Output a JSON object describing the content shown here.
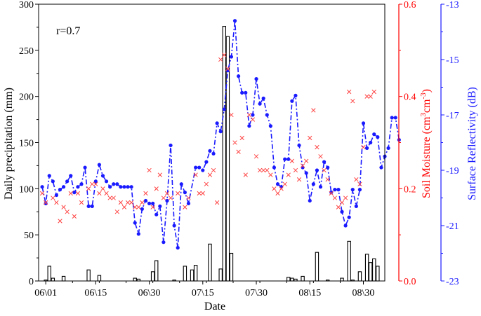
{
  "chart_data": {
    "type": "combo",
    "annotation": "r=0.7",
    "xlabel": "Date",
    "x_ticks": [
      "06\\01",
      "06\\15",
      "06\\30",
      "07\\15",
      "07\\30",
      "08\\15",
      "08\\30"
    ],
    "x_tick_days": [
      1,
      15,
      30,
      45,
      60,
      75,
      90
    ],
    "x_range": [
      -1,
      96
    ],
    "y_left": {
      "label": "Daily precipitation (mm)",
      "range": [
        0,
        300
      ],
      "ticks": [
        "0",
        "50",
        "100",
        "150",
        "200",
        "250",
        "300"
      ],
      "color": "#000000"
    },
    "y_right1": {
      "label_main": "Soil Moisture (cm",
      "label_sup1": "3",
      "label_mid": "cm",
      "label_sup2": "-3",
      "label_end": ")",
      "range": [
        0.0,
        0.6
      ],
      "ticks": [
        "0.0",
        "0.2",
        "0.4",
        "0.6"
      ],
      "color": "#ff0000"
    },
    "y_right2": {
      "label": "Surface Reflectivity (dB)",
      "range": [
        -23,
        -13
      ],
      "ticks": [
        "-23",
        "-21",
        "-19",
        "-17",
        "-15",
        "-13"
      ],
      "color": "#1a1aff"
    },
    "series": [
      {
        "name": "Daily precipitation",
        "axis": "left",
        "kind": "bar",
        "color": "#000000",
        "points": [
          [
            1,
            1
          ],
          [
            2,
            16
          ],
          [
            3,
            3
          ],
          [
            6,
            5
          ],
          [
            13,
            12
          ],
          [
            16,
            6
          ],
          [
            26,
            3
          ],
          [
            27,
            2
          ],
          [
            31,
            10
          ],
          [
            32,
            22
          ],
          [
            37,
            1
          ],
          [
            40,
            16
          ],
          [
            42,
            12
          ],
          [
            43,
            17
          ],
          [
            47,
            40
          ],
          [
            50,
            13
          ],
          [
            51,
            276
          ],
          [
            52,
            265
          ],
          [
            53,
            30
          ],
          [
            69,
            4
          ],
          [
            70,
            3
          ],
          [
            71,
            2
          ],
          [
            73,
            5
          ],
          [
            77,
            31
          ],
          [
            80,
            1
          ],
          [
            84,
            3
          ],
          [
            86,
            43
          ],
          [
            87,
            1
          ],
          [
            89,
            10
          ],
          [
            91,
            29
          ],
          [
            92,
            20
          ],
          [
            93,
            24
          ],
          [
            94,
            16
          ]
        ]
      },
      {
        "name": "Soil Moisture",
        "axis": "right1",
        "kind": "scatter",
        "marker": "x",
        "color": "#ff4444",
        "points": [
          [
            0,
            0.19
          ],
          [
            1,
            0.17
          ],
          [
            3,
            0.18
          ],
          [
            4,
            0.17
          ],
          [
            5,
            0.13
          ],
          [
            6,
            0.16
          ],
          [
            7,
            0.15
          ],
          [
            8,
            0.19
          ],
          [
            9,
            0.14
          ],
          [
            10,
            0.19
          ],
          [
            11,
            0.17
          ],
          [
            13,
            0.2
          ],
          [
            14,
            0.21
          ],
          [
            15,
            0.21
          ],
          [
            16,
            0.19
          ],
          [
            17,
            0.2
          ],
          [
            18,
            0.19
          ],
          [
            19,
            0.18
          ],
          [
            20,
            0.18
          ],
          [
            21,
            0.15
          ],
          [
            22,
            0.17
          ],
          [
            23,
            0.16
          ],
          [
            24,
            0.17
          ],
          [
            25,
            0.17
          ],
          [
            26,
            0.16
          ],
          [
            27,
            0.16
          ],
          [
            28,
            0.17
          ],
          [
            29,
            0.19
          ],
          [
            30,
            0.24
          ],
          [
            31,
            0.16
          ],
          [
            32,
            0.2
          ],
          [
            33,
            0.23
          ],
          [
            34,
            0.18
          ],
          [
            35,
            0.19
          ],
          [
            36,
            0.18
          ],
          [
            38,
            0.19
          ],
          [
            40,
            0.16
          ],
          [
            41,
            0.18
          ],
          [
            43,
            0.23
          ],
          [
            44,
            0.19
          ],
          [
            45,
            0.19
          ],
          [
            46,
            0.21
          ],
          [
            47,
            0.23
          ],
          [
            48,
            0.24
          ],
          [
            49,
            0.17
          ],
          [
            50,
            0.48
          ],
          [
            51,
            0.49
          ],
          [
            52,
            0.46
          ],
          [
            53,
            0.36
          ],
          [
            54,
            0.3
          ],
          [
            55,
            0.28
          ],
          [
            56,
            0.31
          ],
          [
            57,
            0.23
          ],
          [
            58,
            0.36
          ],
          [
            59,
            0.35
          ],
          [
            60,
            0.27
          ],
          [
            61,
            0.24
          ],
          [
            62,
            0.24
          ],
          [
            63,
            0.24
          ],
          [
            64,
            0.23
          ],
          [
            65,
            0.2
          ],
          [
            66,
            0.19
          ],
          [
            67,
            0.2
          ],
          [
            68,
            0.21
          ],
          [
            69,
            0.23
          ],
          [
            70,
            0.26
          ],
          [
            71,
            0.24
          ],
          [
            72,
            0.22
          ],
          [
            73,
            0.25
          ],
          [
            74,
            0.26
          ],
          [
            75,
            0.31
          ],
          [
            76,
            0.37
          ],
          [
            77,
            0.29
          ],
          [
            78,
            0.27
          ],
          [
            79,
            0.24
          ],
          [
            80,
            0.22
          ],
          [
            81,
            0.19
          ],
          [
            82,
            0.18
          ],
          [
            83,
            0.16
          ],
          [
            84,
            0.17
          ],
          [
            85,
            0.18
          ],
          [
            86,
            0.41
          ],
          [
            87,
            0.39
          ],
          [
            88,
            0.22
          ],
          [
            89,
            0.21
          ],
          [
            90,
            0.29
          ],
          [
            91,
            0.4
          ],
          [
            92,
            0.4
          ],
          [
            93,
            0.41
          ]
        ]
      },
      {
        "name": "Surface Reflectivity",
        "axis": "right2",
        "kind": "line",
        "color": "#1a1aff",
        "points": [
          [
            0,
            -19.6
          ],
          [
            1,
            -20.2
          ],
          [
            2,
            -19.2
          ],
          [
            3,
            -19.4
          ],
          [
            4,
            -19.9
          ],
          [
            5,
            -19.7
          ],
          [
            6,
            -19.6
          ],
          [
            7,
            -19.4
          ],
          [
            8,
            -19.2
          ],
          [
            9,
            -19.8
          ],
          [
            10,
            -19.6
          ],
          [
            11,
            -19.5
          ],
          [
            12,
            -18.9
          ],
          [
            13,
            -20.3
          ],
          [
            14,
            -20.3
          ],
          [
            15,
            -19.4
          ],
          [
            16,
            -18.8
          ],
          [
            17,
            -19.2
          ],
          [
            18,
            -19.4
          ],
          [
            19,
            -19.6
          ],
          [
            20,
            -19.5
          ],
          [
            21,
            -19.5
          ],
          [
            22,
            -19.6
          ],
          [
            23,
            -19.6
          ],
          [
            24,
            -19.6
          ],
          [
            25,
            -19.6
          ],
          [
            26,
            -20.9
          ],
          [
            27,
            -21.3
          ],
          [
            28,
            -20.4
          ],
          [
            29,
            -20.1
          ],
          [
            30,
            -20.2
          ],
          [
            31,
            -20.2
          ],
          [
            32,
            -20.6
          ],
          [
            33,
            -20.3
          ],
          [
            34,
            -21.6
          ],
          [
            35,
            -20.1
          ],
          [
            36,
            -18.1
          ],
          [
            37,
            -21.0
          ],
          [
            38,
            -21.8
          ],
          [
            39,
            -19.5
          ],
          [
            40,
            -19.8
          ],
          [
            41,
            -20.2
          ],
          [
            43,
            -18.9
          ],
          [
            44,
            -18.9
          ],
          [
            45,
            -19.0
          ],
          [
            46,
            -18.7
          ],
          [
            47,
            -18.3
          ],
          [
            48,
            -18.4
          ],
          [
            49,
            -17.3
          ],
          [
            50,
            -17.6
          ],
          [
            51,
            -16.8
          ],
          [
            52,
            -15.4
          ],
          [
            53,
            -14.9
          ],
          [
            54,
            -13.6
          ],
          [
            55,
            -15.6
          ],
          [
            56,
            -16.2
          ],
          [
            57,
            -16.2
          ],
          [
            58,
            -17.4
          ],
          [
            59,
            -17.0
          ],
          [
            60,
            -15.7
          ],
          [
            61,
            -16.6
          ],
          [
            62,
            -16.4
          ],
          [
            63,
            -17.0
          ],
          [
            64,
            -17.4
          ],
          [
            65,
            -18.9
          ],
          [
            66,
            -19.5
          ],
          [
            67,
            -19.6
          ],
          [
            68,
            -18.6
          ],
          [
            69,
            -18.6
          ],
          [
            70,
            -16.5
          ],
          [
            71,
            -16.3
          ],
          [
            72,
            -18.1
          ],
          [
            73,
            -18.9
          ],
          [
            74,
            -19.1
          ],
          [
            75,
            -20.1
          ],
          [
            76,
            -19.5
          ],
          [
            77,
            -19.0
          ],
          [
            78,
            -19.6
          ],
          [
            79,
            -18.7
          ],
          [
            80,
            -18.9
          ],
          [
            81,
            -19.8
          ],
          [
            82,
            -19.7
          ],
          [
            83,
            -19.7
          ],
          [
            84,
            -20.5
          ],
          [
            85,
            -21.0
          ],
          [
            86,
            -20.7
          ],
          [
            87,
            -19.7
          ],
          [
            88,
            -20.3
          ],
          [
            89,
            -19.7
          ],
          [
            90,
            -17.3
          ],
          [
            91,
            -18.2
          ],
          [
            92,
            -18.0
          ],
          [
            93,
            -17.7
          ],
          [
            94,
            -17.8
          ],
          [
            95,
            -18.9
          ],
          [
            96,
            -18.5
          ],
          [
            97,
            -18.2
          ],
          [
            98,
            -17.1
          ],
          [
            99,
            -17.1
          ],
          [
            100,
            -17.9
          ]
        ]
      }
    ]
  }
}
